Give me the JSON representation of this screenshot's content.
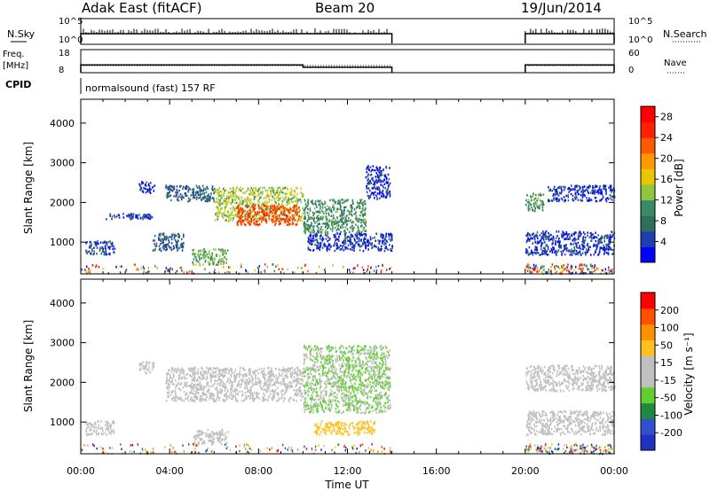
{
  "header": {
    "title": "Adak East (fitACF)",
    "beam": "Beam 20",
    "date": "19/Jun/2014"
  },
  "colors": {
    "power_scale": [
      "#0000ff",
      "#1f3fb0",
      "#2f6f5a",
      "#3a8a6a",
      "#8ec63f",
      "#e8c800",
      "#ff9900",
      "#ff5a00",
      "#ff2000",
      "#ff0000"
    ],
    "velocity_scale": [
      "#2030c0",
      "#3050d0",
      "#1f8a3f",
      "#5fd030",
      "#c0c0c0",
      "#c0c0c0",
      "#ffc020",
      "#ff9000",
      "#ff5000",
      "#ff0000"
    ]
  },
  "chart_data": [
    {
      "type": "line",
      "panel": "N.Sky / N.Search",
      "left_label": "N.Sky",
      "right_label": "N.Search",
      "left_ticks": [
        "10^5",
        "10^0"
      ],
      "right_ticks": [
        "10^5",
        "10^0"
      ],
      "x_ticks": [
        "00:00",
        "04:00",
        "08:00",
        "12:00",
        "16:00",
        "20:00",
        "00:00"
      ],
      "segments": [
        {
          "x": [
            0,
            14
          ],
          "level": "high"
        },
        {
          "x": [
            20,
            24
          ],
          "level": "high"
        }
      ]
    },
    {
      "type": "line",
      "panel": "Freq / Nave",
      "left_label": "Freq.",
      "left_unit": "[MHz]",
      "right_label": "Nave",
      "left_ticks": [
        18,
        8
      ],
      "right_ticks": [
        60,
        0
      ],
      "series": [
        {
          "name": "Freq.",
          "x": [
            0,
            10,
            10,
            14
          ],
          "y": [
            12.0,
            12.0,
            10.8,
            10.8
          ]
        },
        {
          "name": "Nave",
          "x": [
            0,
            14
          ],
          "y": [
            13,
            13
          ]
        },
        {
          "name": "Freq.",
          "x": [
            20,
            24
          ],
          "y": [
            12.0,
            12.0
          ]
        },
        {
          "name": "Nave",
          "x": [
            20,
            24
          ],
          "y": [
            13,
            13
          ]
        }
      ]
    },
    {
      "type": "table",
      "panel": "CPID",
      "label": "CPID",
      "text": "normalsound (fast) 157 RF"
    },
    {
      "type": "heatmap",
      "panel": "Power",
      "ylabel": "Slant Range [km]",
      "y_ticks": [
        1000,
        2000,
        3000,
        4000
      ],
      "ylim": [
        200,
        4600
      ],
      "xlim": [
        0,
        24
      ],
      "colorbar": {
        "label": "Power [dB]",
        "ticks": [
          4,
          8,
          12,
          16,
          20,
          24,
          28
        ],
        "range": [
          0,
          30
        ]
      },
      "features": [
        {
          "x": [
            3.8,
            6.0
          ],
          "y": [
            2050,
            2450
          ],
          "v": 6
        },
        {
          "x": [
            6.0,
            10.0
          ],
          "y": [
            1550,
            2400
          ],
          "v": 14
        },
        {
          "x": [
            7.0,
            9.8
          ],
          "y": [
            1450,
            1950
          ],
          "v": 24
        },
        {
          "x": [
            10.0,
            12.8
          ],
          "y": [
            1250,
            2100
          ],
          "v": 10
        },
        {
          "x": [
            12.8,
            13.9
          ],
          "y": [
            2100,
            2950
          ],
          "v": 4
        },
        {
          "x": [
            1.0,
            3.2
          ],
          "y": [
            1600,
            1750
          ],
          "v": 4
        },
        {
          "x": [
            2.6,
            3.3
          ],
          "y": [
            2250,
            2550
          ],
          "v": 4
        },
        {
          "x": [
            0.2,
            1.5
          ],
          "y": [
            700,
            1050
          ],
          "v": 5
        },
        {
          "x": [
            3.2,
            4.6
          ],
          "y": [
            800,
            1250
          ],
          "v": 6
        },
        {
          "x": [
            5.0,
            6.6
          ],
          "y": [
            450,
            850
          ],
          "v": 12
        },
        {
          "x": [
            10.2,
            14.0
          ],
          "y": [
            800,
            1250
          ],
          "v": 4
        },
        {
          "x": [
            20.0,
            20.8
          ],
          "y": [
            1800,
            2250
          ],
          "v": 10
        },
        {
          "x": [
            21.0,
            24.0
          ],
          "y": [
            2050,
            2450
          ],
          "v": 4
        },
        {
          "x": [
            20.0,
            24.0
          ],
          "y": [
            700,
            1300
          ],
          "v": 4
        }
      ]
    },
    {
      "type": "heatmap",
      "panel": "Velocity",
      "ylabel": "Slant Range [km]",
      "y_ticks": [
        1000,
        2000,
        3000,
        4000
      ],
      "ylim": [
        200,
        4600
      ],
      "xlim": [
        0,
        24
      ],
      "xlabel": "Time UT",
      "colorbar": {
        "label": "Velocity [m s⁻¹]",
        "ticks": [
          200,
          100,
          50,
          15,
          -15,
          -50,
          -100,
          -200
        ],
        "range": [
          -250,
          250
        ]
      },
      "features": [
        {
          "x": [
            3.8,
            10.0
          ],
          "y": [
            1550,
            2400
          ],
          "v": 0
        },
        {
          "x": [
            10.0,
            13.9
          ],
          "y": [
            1250,
            2950
          ],
          "v": -50
        },
        {
          "x": [
            10.5,
            13.2
          ],
          "y": [
            700,
            1050
          ],
          "v": 60
        },
        {
          "x": [
            2.6,
            3.3
          ],
          "y": [
            2250,
            2550
          ],
          "v": 0
        },
        {
          "x": [
            0.2,
            1.5
          ],
          "y": [
            700,
            1050
          ],
          "v": 0
        },
        {
          "x": [
            5.0,
            6.6
          ],
          "y": [
            450,
            850
          ],
          "v": 0
        },
        {
          "x": [
            20.0,
            24.0
          ],
          "y": [
            1800,
            2450
          ],
          "v": 0
        },
        {
          "x": [
            20.0,
            24.0
          ],
          "y": [
            700,
            1300
          ],
          "v": 0
        }
      ]
    }
  ]
}
